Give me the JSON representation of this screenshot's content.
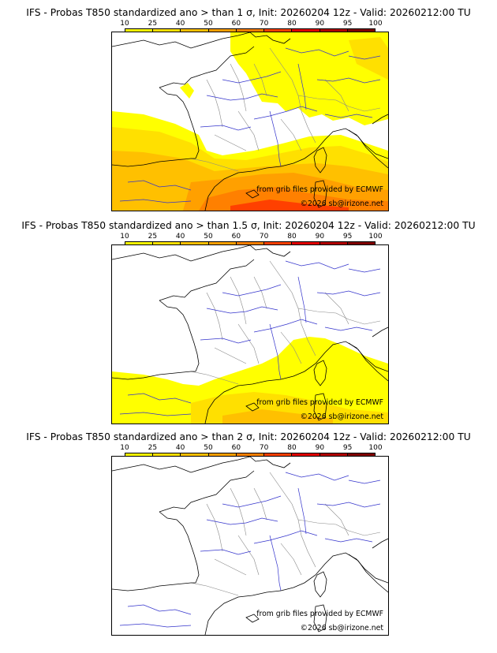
{
  "panels": [
    {
      "title": "IFS - Probas T850  standardized ano > than 1 σ, Init: 20260204 12z - Valid: 20260212:00 TU",
      "threshold": "1 σ",
      "coverage": "high",
      "source": "from grib files provided by ECMWF",
      "copyright": "©2026 sb@irizone.net"
    },
    {
      "title": "IFS - Probas T850  standardized ano > than 1.5 σ, Init: 20260204 12z - Valid: 20260212:00 TU",
      "threshold": "1.5 σ",
      "coverage": "medium",
      "source": "from grib files provided by ECMWF",
      "copyright": "©2026 sb@irizone.net"
    },
    {
      "title": "IFS - Probas T850  standardized ano > than 2 σ, Init: 20260204 12z - Valid: 20260212:00 TU",
      "threshold": "2 σ",
      "coverage": "none",
      "source": "from grib files provided by ECMWF",
      "copyright": "©2026 sb@irizone.net"
    }
  ],
  "colorbar": {
    "ticks": [
      "10",
      "25",
      "40",
      "50",
      "60",
      "70",
      "80",
      "90",
      "95",
      "100"
    ],
    "colors": [
      "#ffff00",
      "#ffe000",
      "#ffc000",
      "#ffa000",
      "#ff8000",
      "#ff4000",
      "#e00000",
      "#b00000",
      "#800000"
    ]
  },
  "map_colors": {
    "ocean": "#ffffff",
    "land": "#ffffff",
    "coast": "#000000",
    "rivers": "#3333cc",
    "borders": "#888888"
  }
}
